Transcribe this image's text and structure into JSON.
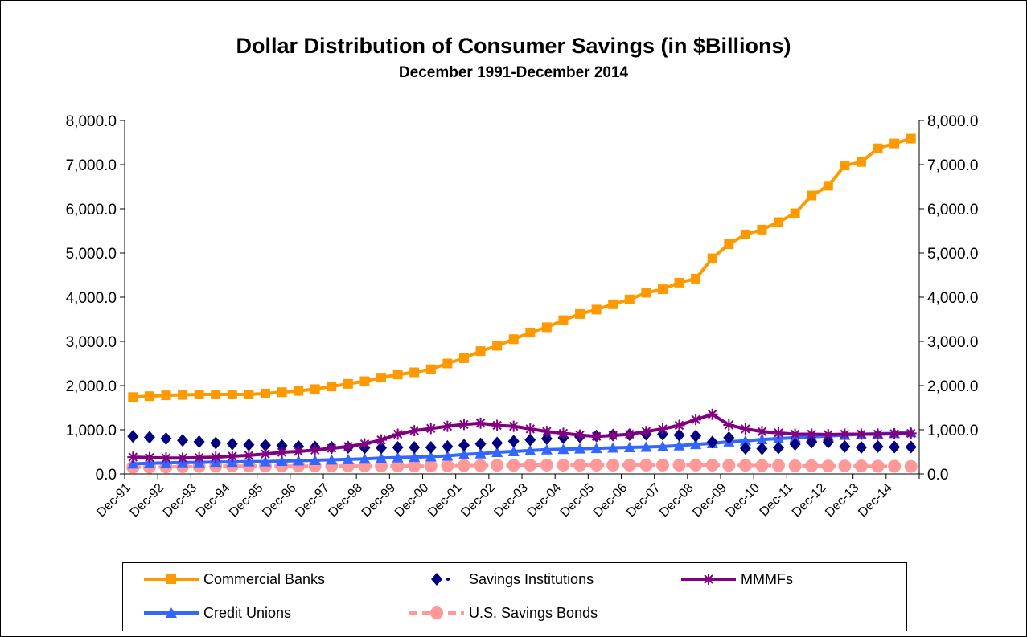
{
  "chart_data": {
    "type": "line",
    "title": "Dollar Distribution of Consumer Savings (in $Billions)",
    "subtitle": "December 1991-December 2014",
    "xlabel": "",
    "ylabel": "",
    "ylim": [
      0,
      8000
    ],
    "yticks": [
      "0.0",
      "1,000.0",
      "2,000.0",
      "3,000.0",
      "4,000.0",
      "5,000.0",
      "6,000.0",
      "7,000.0",
      "8,000.0"
    ],
    "ytick_values": [
      0,
      1000,
      2000,
      3000,
      4000,
      5000,
      6000,
      7000,
      8000
    ],
    "secondary_axis": true,
    "grid": false,
    "legend_position": "bottom",
    "x_ticks": [
      "Dec-91",
      "Dec-92",
      "Dec-93",
      "Dec-94",
      "Dec-95",
      "Dec-96",
      "Dec-97",
      "Dec-98",
      "Dec-99",
      "Dec-00",
      "Dec-01",
      "Dec-02",
      "Dec-03",
      "Dec-04",
      "Dec-05",
      "Dec-06",
      "Dec-07",
      "Dec-08",
      "Dec-09",
      "Dec-10",
      "Dec-11",
      "Dec-12",
      "Dec-13",
      "Dec-14"
    ],
    "points_per_year": 2,
    "series": [
      {
        "name": "Commercial Banks",
        "color": "#FF9900",
        "marker": "square",
        "values": [
          1740,
          1760,
          1780,
          1790,
          1800,
          1800,
          1800,
          1800,
          1820,
          1850,
          1880,
          1920,
          1980,
          2040,
          2100,
          2180,
          2250,
          2300,
          2370,
          2500,
          2620,
          2780,
          2900,
          3050,
          3200,
          3320,
          3480,
          3620,
          3720,
          3840,
          3950,
          4100,
          4180,
          4330,
          4420,
          4880,
          5200,
          5420,
          5530,
          5700,
          5900,
          6300,
          6520,
          6980,
          7060,
          7370,
          7480,
          7590
        ]
      },
      {
        "name": "Savings Institutions",
        "color": "#000080",
        "marker": "diamond",
        "values": [
          850,
          830,
          800,
          760,
          730,
          700,
          680,
          660,
          650,
          640,
          620,
          610,
          600,
          600,
          590,
          590,
          600,
          600,
          600,
          620,
          650,
          680,
          700,
          740,
          770,
          800,
          820,
          840,
          860,
          880,
          890,
          900,
          900,
          880,
          860,
          720,
          820,
          580,
          570,
          590,
          670,
          720,
          720,
          620,
          600,
          620,
          610,
          610
        ]
      },
      {
        "name": "MMMFs",
        "color": "#800080",
        "marker": "star",
        "values": [
          380,
          370,
          360,
          360,
          370,
          380,
          400,
          420,
          450,
          490,
          510,
          540,
          580,
          620,
          680,
          770,
          900,
          980,
          1030,
          1080,
          1120,
          1150,
          1100,
          1080,
          1020,
          960,
          920,
          880,
          850,
          870,
          900,
          960,
          1020,
          1100,
          1230,
          1350,
          1110,
          1020,
          960,
          930,
          900,
          900,
          890,
          900,
          900,
          900,
          910,
          920
        ]
      },
      {
        "name": "Credit Unions",
        "color": "#3366FF",
        "marker": "triangle",
        "values": [
          230,
          240,
          250,
          260,
          260,
          270,
          270,
          280,
          280,
          290,
          300,
          310,
          320,
          330,
          340,
          360,
          370,
          380,
          390,
          410,
          440,
          460,
          490,
          510,
          530,
          550,
          560,
          570,
          580,
          590,
          600,
          610,
          620,
          640,
          670,
          690,
          730,
          750,
          780,
          800,
          820,
          840,
          860,
          880,
          900,
          910,
          920,
          940
        ]
      },
      {
        "name": "U.S. Savings Bonds",
        "color": "#FF9999",
        "marker": "circle",
        "values": [
          150,
          155,
          160,
          165,
          170,
          175,
          180,
          180,
          180,
          180,
          180,
          180,
          180,
          180,
          180,
          180,
          180,
          180,
          180,
          185,
          190,
          190,
          195,
          195,
          200,
          200,
          200,
          200,
          200,
          200,
          200,
          200,
          200,
          200,
          200,
          200,
          195,
          195,
          190,
          190,
          185,
          185,
          180,
          180,
          180,
          175,
          175,
          170
        ]
      }
    ]
  }
}
